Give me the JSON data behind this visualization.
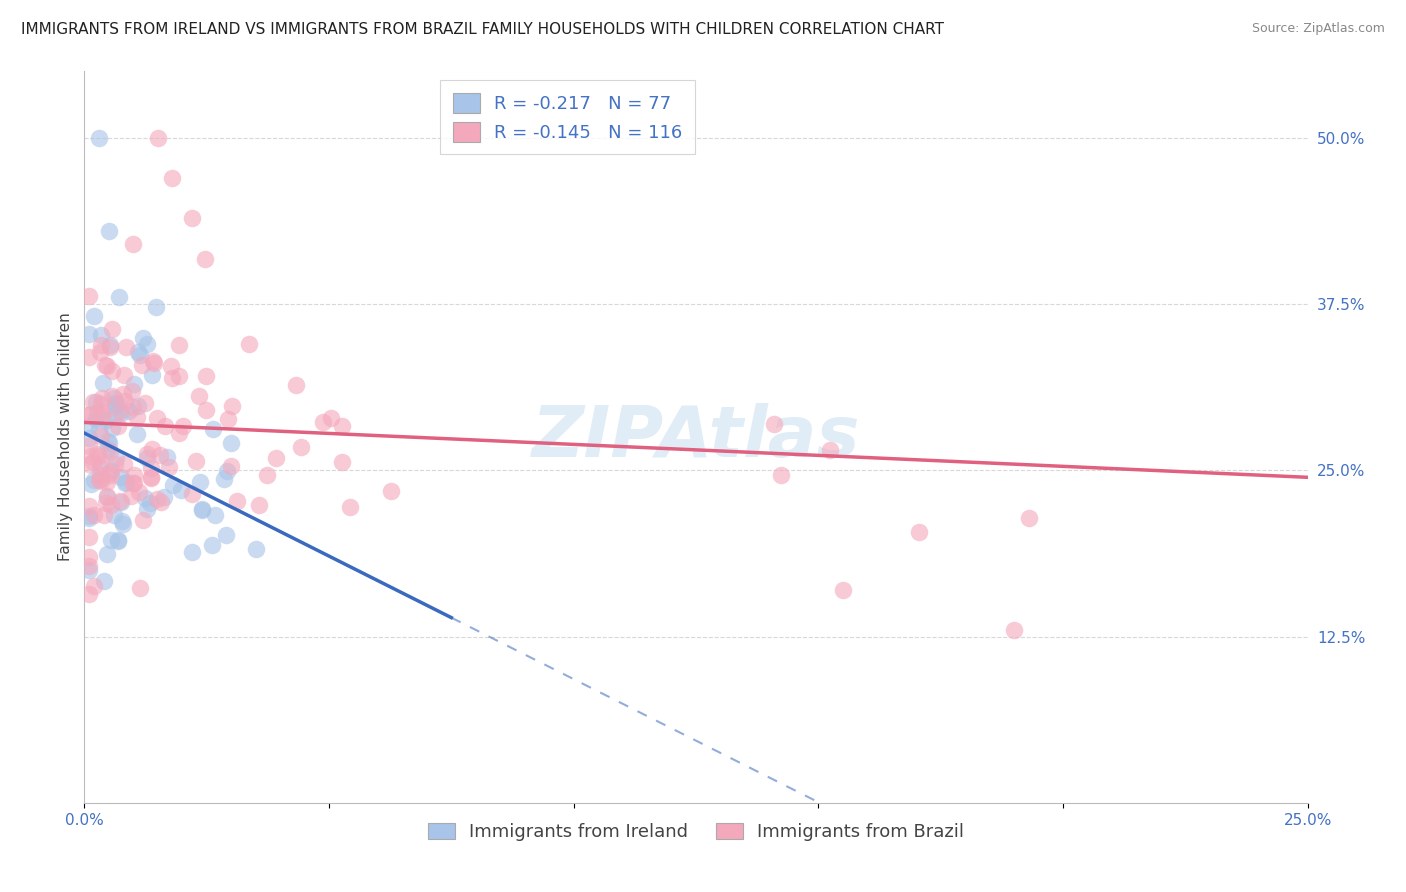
{
  "title": "IMMIGRANTS FROM IRELAND VS IMMIGRANTS FROM BRAZIL FAMILY HOUSEHOLDS WITH CHILDREN CORRELATION CHART",
  "source": "Source: ZipAtlas.com",
  "ylabel": "Family Households with Children",
  "xlim": [
    0.0,
    0.25
  ],
  "ylim": [
    0.0,
    0.55
  ],
  "ireland_color": "#a8c4e8",
  "brazil_color": "#f4a8bc",
  "ireland_line_color": "#3a6abf",
  "brazil_line_color": "#e06080",
  "ireland_R": -0.217,
  "ireland_N": 77,
  "brazil_R": -0.145,
  "brazil_N": 116,
  "legend_label_ireland": "Immigrants from Ireland",
  "legend_label_brazil": "Immigrants from Brazil",
  "background_color": "#ffffff",
  "grid_color": "#d8d8d8",
  "title_fontsize": 11,
  "axis_label_fontsize": 11,
  "tick_fontsize": 11,
  "legend_fontsize": 13
}
